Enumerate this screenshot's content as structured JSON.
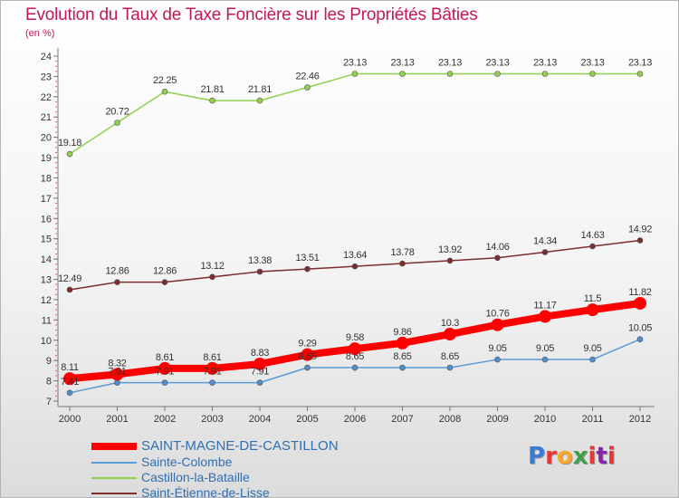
{
  "header": {
    "title": "Evolution du Taux de Taxe Foncière sur les Propriétés Bâties",
    "unit": "(en %)"
  },
  "logo": {
    "text": "Proxiti",
    "colors": [
      "#3a7bd5",
      "#e53935",
      "#f9a825",
      "#43a047",
      "#e53935",
      "#8e24aa",
      "#e53935"
    ]
  },
  "chart_data": {
    "type": "line",
    "title": "Evolution du Taux de Taxe Foncière sur les Propriétés Bâties",
    "ylabel": "(en %)",
    "xlabel": "",
    "x": [
      "2000",
      "2001",
      "2002",
      "2003",
      "2004",
      "2005",
      "2006",
      "2007",
      "2008",
      "2009",
      "2010",
      "2011",
      "2012"
    ],
    "ylim": [
      7,
      24
    ],
    "yticks": [
      "7",
      "8",
      "9",
      "10",
      "11",
      "12",
      "13",
      "14",
      "15",
      "16",
      "17",
      "18",
      "19",
      "20",
      "21",
      "22",
      "23",
      "24"
    ],
    "grid": false,
    "legend_position": "bottom-left",
    "series": [
      {
        "name": "SAINT-MAGNE-DE-CASTILLON",
        "color": "#ff0000",
        "values": [
          8.11,
          8.32,
          8.61,
          8.61,
          8.83,
          9.29,
          9.58,
          9.86,
          10.3,
          10.76,
          11.17,
          11.5,
          11.82
        ],
        "labels": [
          "8.11",
          "8.32",
          "8.61",
          "8.61",
          "8.83",
          "9.29",
          "9.58",
          "9.86",
          "10.3",
          "10.76",
          "11.17",
          "11.5",
          "11.82"
        ]
      },
      {
        "name": "Sainte-Colombe",
        "color": "#5b9bd5",
        "values": [
          7.41,
          7.91,
          7.91,
          7.91,
          7.91,
          8.65,
          8.65,
          8.65,
          8.65,
          9.05,
          9.05,
          9.05,
          10.05
        ],
        "labels": [
          "7.41",
          "7.91",
          "7.91",
          "7.91",
          "7.91",
          "8.65",
          "8.65",
          "8.65",
          "8.65",
          "9.05",
          "9.05",
          "9.05",
          "10.05"
        ]
      },
      {
        "name": "Castillon-la-Bataille",
        "color": "#8fd14f",
        "values": [
          19.18,
          20.72,
          22.25,
          21.81,
          21.81,
          22.46,
          23.13,
          23.13,
          23.13,
          23.13,
          23.13,
          23.13,
          23.13
        ],
        "labels": [
          "19.18",
          "20.72",
          "22.25",
          "21.81",
          "21.81",
          "22.46",
          "23.13",
          "23.13",
          "23.13",
          "23.13",
          "23.13",
          "23.13",
          "23.13"
        ]
      },
      {
        "name": "Saint-Étienne-de-Lisse",
        "color": "#7b2e2e",
        "values": [
          12.49,
          12.86,
          12.86,
          13.12,
          13.38,
          13.51,
          13.64,
          13.78,
          13.92,
          14.06,
          14.34,
          14.63,
          14.92
        ],
        "labels": [
          "12.49",
          "12.86",
          "12.86",
          "13.12",
          "13.38",
          "13.51",
          "13.64",
          "13.78",
          "13.92",
          "14.06",
          "14.34",
          "14.63",
          "14.92"
        ]
      }
    ]
  }
}
